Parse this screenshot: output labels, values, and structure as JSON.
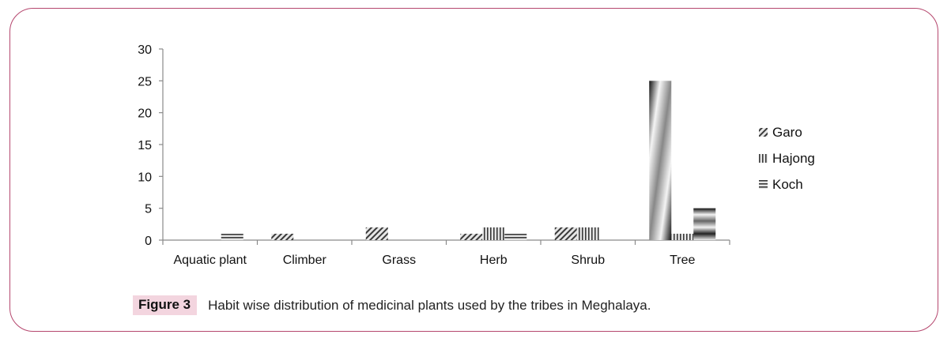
{
  "caption": {
    "label": "Figure 3",
    "text": "Habit wise distribution of medicinal plants used by the tribes in Meghalaya."
  },
  "chart_data": {
    "type": "bar",
    "categories": [
      "Aquatic plant",
      "Climber",
      "Grass",
      "Herb",
      "Shrub",
      "Tree"
    ],
    "series": [
      {
        "name": "Garo",
        "values": [
          0,
          1,
          2,
          1,
          2,
          25
        ],
        "pattern": "diagonal"
      },
      {
        "name": "Hajong",
        "values": [
          0,
          0,
          0,
          2,
          2,
          1
        ],
        "pattern": "vertical"
      },
      {
        "name": "Koch",
        "values": [
          1,
          0,
          0,
          1,
          0,
          5
        ],
        "pattern": "horizontal"
      }
    ],
    "ylim": [
      0,
      30
    ],
    "yticks": [
      0,
      5,
      10,
      15,
      20,
      25,
      30
    ],
    "grid": false,
    "legend": "right"
  }
}
